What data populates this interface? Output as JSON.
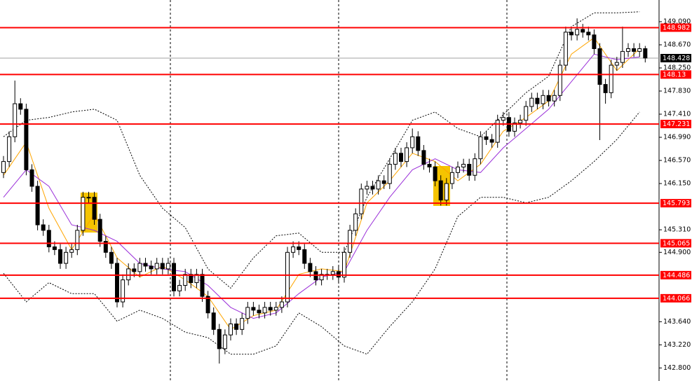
{
  "chart_data": {
    "type": "candlestick",
    "ylim": [
      142.563,
      149.484
    ],
    "yticks": [
      {
        "value": 149.09,
        "label": "149.090"
      },
      {
        "value": 148.67,
        "label": "148.670"
      },
      {
        "value": 148.25,
        "label": "148.250"
      },
      {
        "value": 147.83,
        "label": "147.830"
      },
      {
        "value": 147.41,
        "label": "147.410"
      },
      {
        "value": 146.99,
        "label": "146.990"
      },
      {
        "value": 146.57,
        "label": "146.570"
      },
      {
        "value": 146.15,
        "label": "146.150"
      },
      {
        "value": 145.31,
        "label": "145.310"
      },
      {
        "value": 144.9,
        "label": "144.900"
      },
      {
        "value": 143.64,
        "label": "143.640"
      },
      {
        "value": 143.22,
        "label": "143.220"
      },
      {
        "value": 142.8,
        "label": "142.800"
      }
    ],
    "levels": [
      148.982,
      148.13,
      147.231,
      145.793,
      145.065,
      144.486,
      144.066
    ],
    "level_color": "#ff0000",
    "last_price": 148.428,
    "up_color": "#ffffff",
    "down_color": "#000000",
    "open": [
      146.35,
      146.55,
      147.0,
      147.6,
      147.5,
      146.4,
      146.1,
      145.4,
      145.3,
      145.0,
      144.95,
      144.7,
      144.9,
      144.95,
      145.3,
      145.9,
      145.9,
      145.5,
      145.1,
      144.9,
      144.7,
      144.0,
      144.4,
      144.6,
      144.55,
      144.7,
      144.65,
      144.6,
      144.7,
      144.6,
      144.7,
      144.2,
      144.3,
      144.5,
      144.35,
      144.5,
      144.1,
      143.8,
      143.5,
      143.15,
      143.4,
      143.6,
      143.5,
      143.7,
      143.9,
      143.85,
      143.8,
      143.9,
      143.85,
      143.9,
      144.0,
      144.9,
      145.0,
      144.95,
      144.7,
      144.55,
      144.4,
      144.5,
      144.5,
      144.55,
      144.45,
      144.9,
      145.3,
      145.6,
      146.05,
      146.1,
      146.05,
      146.2,
      146.15,
      146.5,
      146.7,
      146.55,
      146.8,
      147.0,
      146.75,
      146.5,
      146.45,
      146.2,
      145.85,
      146.15,
      146.35,
      146.45,
      146.5,
      146.3,
      146.6,
      147.0,
      146.95,
      146.9,
      147.3,
      147.35,
      147.1,
      147.25,
      147.3,
      147.55,
      147.7,
      147.6,
      147.75,
      147.65,
      147.75,
      148.3,
      148.9,
      148.85,
      148.95,
      148.9,
      148.85,
      148.6,
      147.95,
      147.8,
      148.3,
      148.35,
      148.55,
      148.6,
      148.55,
      148.6
    ],
    "high": [
      146.65,
      147.1,
      148.02,
      147.7,
      147.6,
      146.5,
      146.2,
      145.5,
      145.4,
      145.1,
      145.05,
      145.0,
      145.05,
      145.4,
      146.0,
      146.0,
      146.0,
      145.6,
      145.2,
      145.0,
      144.8,
      144.5,
      144.7,
      144.7,
      144.8,
      144.8,
      144.75,
      144.8,
      144.8,
      144.8,
      144.8,
      144.4,
      144.6,
      144.6,
      144.6,
      144.6,
      144.2,
      143.9,
      143.6,
      143.5,
      143.7,
      143.7,
      143.8,
      144.0,
      144.0,
      143.95,
      144.0,
      144.0,
      144.0,
      144.1,
      145.0,
      145.1,
      145.1,
      145.05,
      144.8,
      144.65,
      144.6,
      144.6,
      144.65,
      144.65,
      145.0,
      145.4,
      145.7,
      146.15,
      146.2,
      146.2,
      146.3,
      146.3,
      146.6,
      146.8,
      146.8,
      146.9,
      147.15,
      147.1,
      146.85,
      146.6,
      146.55,
      146.3,
      146.25,
      146.45,
      146.55,
      146.6,
      146.6,
      146.7,
      147.1,
      147.1,
      147.05,
      147.4,
      147.45,
      147.45,
      147.35,
      147.4,
      147.65,
      147.8,
      147.8,
      147.85,
      147.85,
      147.85,
      148.4,
      149.0,
      149.0,
      149.15,
      149.05,
      149.0,
      148.95,
      148.7,
      148.05,
      148.4,
      148.45,
      149.0,
      148.7,
      148.7,
      148.7,
      148.65
    ],
    "low": [
      146.25,
      146.45,
      146.9,
      147.4,
      146.3,
      146.0,
      145.3,
      145.2,
      144.9,
      144.85,
      144.6,
      144.6,
      144.8,
      144.85,
      145.2,
      145.8,
      145.4,
      145.0,
      144.8,
      144.6,
      143.9,
      143.9,
      144.3,
      144.45,
      144.45,
      144.55,
      144.5,
      144.5,
      144.5,
      144.5,
      144.1,
      144.1,
      144.2,
      144.25,
      144.25,
      144.0,
      143.7,
      143.4,
      142.88,
      143.05,
      143.3,
      143.4,
      143.4,
      143.6,
      143.75,
      143.7,
      143.7,
      143.75,
      143.75,
      143.8,
      143.9,
      144.8,
      144.85,
      144.6,
      144.45,
      144.3,
      144.3,
      144.4,
      144.4,
      144.35,
      144.35,
      144.8,
      145.2,
      145.5,
      145.95,
      145.95,
      145.95,
      146.05,
      146.05,
      146.4,
      146.45,
      146.45,
      146.7,
      146.65,
      146.4,
      146.35,
      146.1,
      145.75,
      145.75,
      146.05,
      146.25,
      146.35,
      146.2,
      146.2,
      146.5,
      146.85,
      146.8,
      146.8,
      147.2,
      147.0,
      147.0,
      147.15,
      147.2,
      147.45,
      147.5,
      147.5,
      147.55,
      147.55,
      147.65,
      148.2,
      148.75,
      148.75,
      148.8,
      148.75,
      148.5,
      146.94,
      147.6,
      147.7,
      148.2,
      148.25,
      148.45,
      148.45,
      148.45,
      148.35
    ],
    "close": [
      146.55,
      147.0,
      147.6,
      147.5,
      146.4,
      146.1,
      145.4,
      145.3,
      145.0,
      144.95,
      144.7,
      144.9,
      144.95,
      145.3,
      145.9,
      145.9,
      145.5,
      145.1,
      144.9,
      144.7,
      144.0,
      144.4,
      144.6,
      144.55,
      144.7,
      144.65,
      144.6,
      144.7,
      144.6,
      144.7,
      144.2,
      144.3,
      144.5,
      144.35,
      144.5,
      144.1,
      143.8,
      143.5,
      143.15,
      143.4,
      143.6,
      143.5,
      143.7,
      143.9,
      143.85,
      143.8,
      143.9,
      143.85,
      143.9,
      144.0,
      144.9,
      145.0,
      144.95,
      144.7,
      144.55,
      144.4,
      144.5,
      144.5,
      144.55,
      144.45,
      144.9,
      145.3,
      145.6,
      146.05,
      146.1,
      146.05,
      146.2,
      146.15,
      146.5,
      146.7,
      146.55,
      146.8,
      147.0,
      146.75,
      146.5,
      146.45,
      146.2,
      145.85,
      146.15,
      146.35,
      146.45,
      146.5,
      146.3,
      146.6,
      147.0,
      146.95,
      146.9,
      147.3,
      147.35,
      147.1,
      147.25,
      147.3,
      147.55,
      147.7,
      147.6,
      147.75,
      147.65,
      147.75,
      148.3,
      148.9,
      148.85,
      148.95,
      148.9,
      148.85,
      148.6,
      147.95,
      147.8,
      148.3,
      148.35,
      148.55,
      148.6,
      148.55,
      148.6,
      148.43
    ],
    "indicators": [
      {
        "color": "#ffa500",
        "style": "solid",
        "x": [
          0,
          4,
          8,
          12,
          16,
          20,
          24,
          28,
          32,
          36,
          40,
          44,
          48,
          52,
          56,
          60,
          64,
          68,
          72,
          76,
          80,
          84,
          88,
          92,
          96,
          100,
          104,
          108,
          112
        ],
        "values": [
          146.3,
          146.9,
          145.7,
          144.95,
          145.6,
          144.8,
          144.45,
          144.65,
          144.4,
          144.1,
          143.5,
          143.75,
          143.85,
          144.5,
          144.6,
          144.55,
          145.8,
          146.2,
          146.7,
          146.55,
          146.2,
          146.5,
          147.1,
          147.35,
          147.65,
          148.5,
          148.8,
          148.2,
          148.6
        ]
      },
      {
        "color": "#9b30d9",
        "style": "solid",
        "x": [
          0,
          4,
          8,
          12,
          16,
          20,
          24,
          28,
          32,
          36,
          40,
          44,
          48,
          52,
          56,
          60,
          64,
          68,
          72,
          76,
          80,
          84,
          88,
          92,
          96,
          100,
          104,
          108,
          112
        ],
        "values": [
          145.9,
          146.4,
          146.1,
          145.4,
          145.3,
          145.1,
          144.7,
          144.6,
          144.55,
          144.3,
          143.9,
          143.7,
          143.8,
          144.15,
          144.45,
          144.55,
          145.3,
          145.9,
          146.4,
          146.6,
          146.4,
          146.35,
          146.8,
          147.15,
          147.5,
          148.0,
          148.5,
          148.4,
          148.45
        ]
      },
      {
        "color": "#000000",
        "style": "dashed",
        "x": [
          0,
          4,
          8,
          12,
          16,
          20,
          24,
          28,
          32,
          36,
          40,
          44,
          48,
          52,
          56,
          60,
          64,
          68,
          72,
          76,
          80,
          84,
          88,
          92,
          96,
          100,
          104,
          108,
          112
        ],
        "values": [
          147.0,
          147.3,
          147.35,
          147.45,
          147.5,
          147.3,
          146.3,
          145.7,
          145.35,
          144.6,
          144.25,
          144.8,
          145.2,
          145.25,
          144.9,
          144.9,
          145.9,
          146.6,
          147.3,
          147.45,
          147.15,
          147.0,
          147.4,
          147.8,
          148.1,
          149.0,
          149.25,
          149.25,
          149.27
        ]
      },
      {
        "color": "#000000",
        "style": "dashed",
        "x": [
          0,
          4,
          8,
          12,
          16,
          20,
          24,
          28,
          32,
          36,
          40,
          44,
          48,
          52,
          56,
          60,
          64,
          68,
          72,
          76,
          80,
          84,
          88,
          92,
          96,
          100,
          104,
          108,
          112
        ],
        "values": [
          144.52,
          144.0,
          144.35,
          144.15,
          144.15,
          143.65,
          143.85,
          143.7,
          143.45,
          143.35,
          143.05,
          143.05,
          143.2,
          143.8,
          143.55,
          143.2,
          143.05,
          143.55,
          144.0,
          144.6,
          145.55,
          145.9,
          145.9,
          145.8,
          145.9,
          146.2,
          146.55,
          146.95,
          147.45
        ]
      }
    ]
  }
}
